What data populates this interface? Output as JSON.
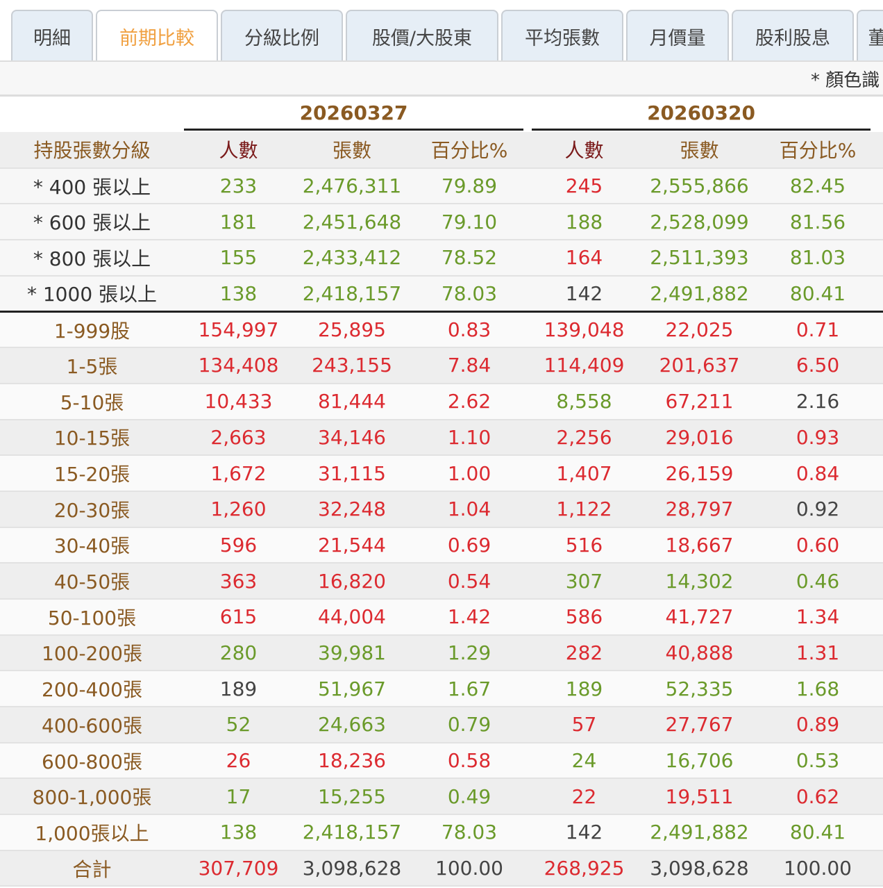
{
  "tabs": [
    "明細",
    "前期比較",
    "分級比例",
    "股價/大股東",
    "平均張數",
    "月價量",
    "股利股息",
    "董"
  ],
  "active_tab": 1,
  "note": "* 顏色識",
  "dates": [
    "20260327",
    "20260320"
  ],
  "headers": {
    "level": "持股張數分級",
    "people": "人數",
    "lots": "張數",
    "pct": "百分比%"
  },
  "colors": {
    "up": "#dc2a30",
    "down": "#6a9a2a",
    "flat": "#444444",
    "label": "#8a5a22"
  },
  "summary_rows": [
    {
      "label": "* 400 張以上",
      "cells": [
        "233",
        "2,476,311",
        "79.89",
        "245",
        "2,555,866",
        "82.45"
      ],
      "c": [
        "g",
        "g",
        "g",
        "r",
        "g",
        "g"
      ]
    },
    {
      "label": "* 600 張以上",
      "cells": [
        "181",
        "2,451,648",
        "79.10",
        "188",
        "2,528,099",
        "81.56"
      ],
      "c": [
        "g",
        "g",
        "g",
        "g",
        "g",
        "g"
      ]
    },
    {
      "label": "* 800 張以上",
      "cells": [
        "155",
        "2,433,412",
        "78.52",
        "164",
        "2,511,393",
        "81.03"
      ],
      "c": [
        "g",
        "g",
        "g",
        "r",
        "g",
        "g"
      ]
    },
    {
      "label": "* 1000 張以上",
      "cells": [
        "138",
        "2,418,157",
        "78.03",
        "142",
        "2,491,882",
        "80.41"
      ],
      "c": [
        "g",
        "g",
        "g",
        "k",
        "g",
        "g"
      ]
    }
  ],
  "rows": [
    {
      "label": "1-999股",
      "cells": [
        "154,997",
        "25,895",
        "0.83",
        "139,048",
        "22,025",
        "0.71"
      ],
      "c": [
        "r",
        "r",
        "r",
        "r",
        "r",
        "r"
      ]
    },
    {
      "label": "1-5張",
      "cells": [
        "134,408",
        "243,155",
        "7.84",
        "114,409",
        "201,637",
        "6.50"
      ],
      "c": [
        "r",
        "r",
        "r",
        "r",
        "r",
        "r"
      ]
    },
    {
      "label": "5-10張",
      "cells": [
        "10,433",
        "81,444",
        "2.62",
        "8,558",
        "67,211",
        "2.16"
      ],
      "c": [
        "r",
        "r",
        "r",
        "g",
        "r",
        "k"
      ]
    },
    {
      "label": "10-15張",
      "cells": [
        "2,663",
        "34,146",
        "1.10",
        "2,256",
        "29,016",
        "0.93"
      ],
      "c": [
        "r",
        "r",
        "r",
        "r",
        "r",
        "r"
      ]
    },
    {
      "label": "15-20張",
      "cells": [
        "1,672",
        "31,115",
        "1.00",
        "1,407",
        "26,159",
        "0.84"
      ],
      "c": [
        "r",
        "r",
        "r",
        "r",
        "r",
        "r"
      ]
    },
    {
      "label": "20-30張",
      "cells": [
        "1,260",
        "32,248",
        "1.04",
        "1,122",
        "28,797",
        "0.92"
      ],
      "c": [
        "r",
        "r",
        "r",
        "r",
        "r",
        "k"
      ]
    },
    {
      "label": "30-40張",
      "cells": [
        "596",
        "21,544",
        "0.69",
        "516",
        "18,667",
        "0.60"
      ],
      "c": [
        "r",
        "r",
        "r",
        "r",
        "r",
        "r"
      ]
    },
    {
      "label": "40-50張",
      "cells": [
        "363",
        "16,820",
        "0.54",
        "307",
        "14,302",
        "0.46"
      ],
      "c": [
        "r",
        "r",
        "r",
        "g",
        "g",
        "g"
      ]
    },
    {
      "label": "50-100張",
      "cells": [
        "615",
        "44,004",
        "1.42",
        "586",
        "41,727",
        "1.34"
      ],
      "c": [
        "r",
        "r",
        "r",
        "r",
        "r",
        "r"
      ]
    },
    {
      "label": "100-200張",
      "cells": [
        "280",
        "39,981",
        "1.29",
        "282",
        "40,888",
        "1.31"
      ],
      "c": [
        "g",
        "g",
        "g",
        "r",
        "r",
        "r"
      ]
    },
    {
      "label": "200-400張",
      "cells": [
        "189",
        "51,967",
        "1.67",
        "189",
        "52,335",
        "1.68"
      ],
      "c": [
        "k",
        "g",
        "g",
        "g",
        "g",
        "g"
      ]
    },
    {
      "label": "400-600張",
      "cells": [
        "52",
        "24,663",
        "0.79",
        "57",
        "27,767",
        "0.89"
      ],
      "c": [
        "g",
        "g",
        "g",
        "r",
        "r",
        "r"
      ]
    },
    {
      "label": "600-800張",
      "cells": [
        "26",
        "18,236",
        "0.58",
        "24",
        "16,706",
        "0.53"
      ],
      "c": [
        "r",
        "r",
        "r",
        "g",
        "g",
        "g"
      ]
    },
    {
      "label": "800-1,000張",
      "cells": [
        "17",
        "15,255",
        "0.49",
        "22",
        "19,511",
        "0.62"
      ],
      "c": [
        "g",
        "g",
        "g",
        "r",
        "r",
        "r"
      ]
    },
    {
      "label": "1,000張以上",
      "cells": [
        "138",
        "2,418,157",
        "78.03",
        "142",
        "2,491,882",
        "80.41"
      ],
      "c": [
        "g",
        "g",
        "g",
        "k",
        "g",
        "g"
      ]
    },
    {
      "label": "合計",
      "cells": [
        "307,709",
        "3,098,628",
        "100.00",
        "268,925",
        "3,098,628",
        "100.00"
      ],
      "c": [
        "r",
        "k",
        "k",
        "r",
        "k",
        "k"
      ]
    }
  ]
}
